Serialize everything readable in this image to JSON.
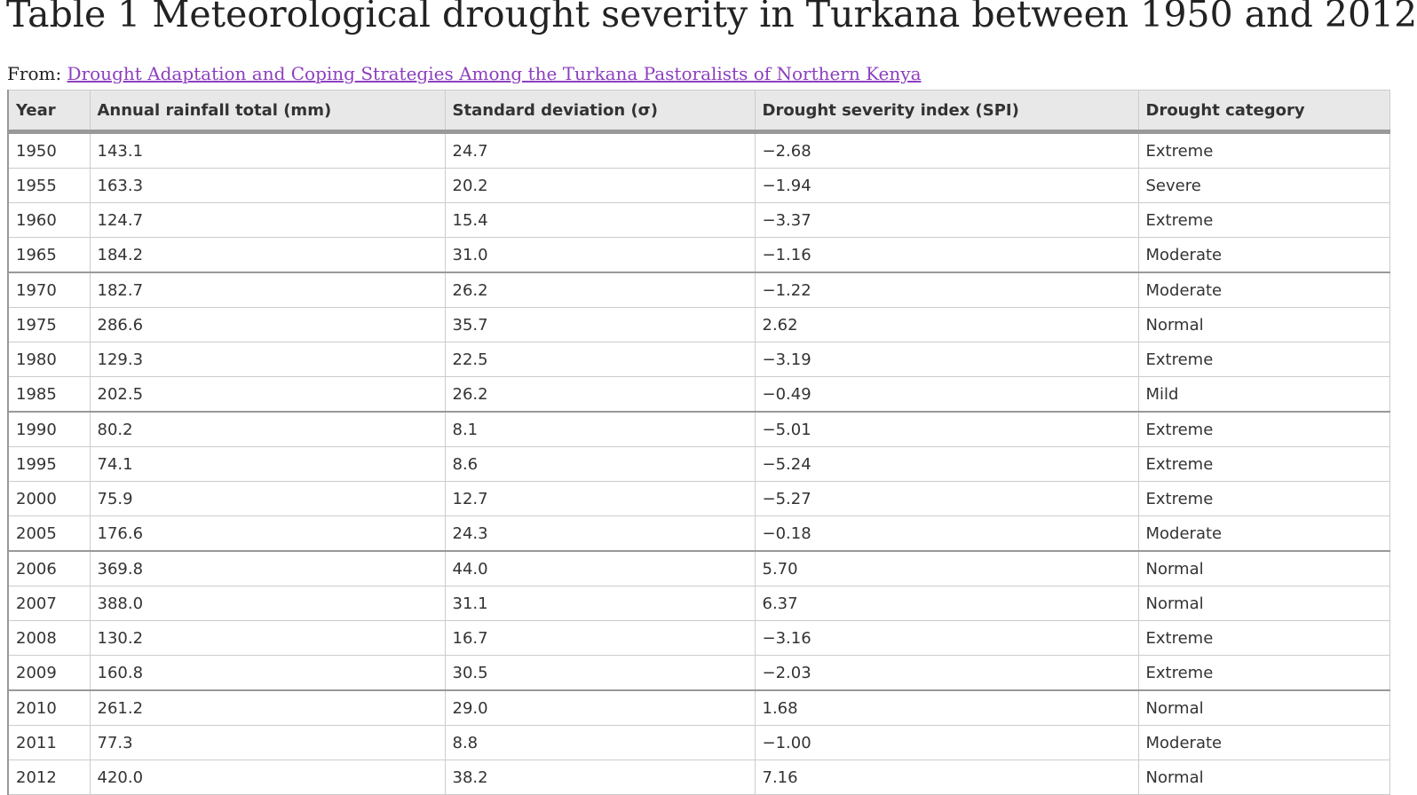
{
  "title": "Table 1 Meteorological drought severity in Turkana between 1950 and 2012",
  "source": {
    "label": "From:",
    "link_text": "Drought Adaptation and Coping Strategies Among the Turkana Pastoralists of Northern Kenya"
  },
  "table": {
    "headers": [
      "Year",
      "Annual rainfall total (mm)",
      "Standard deviation (σ)",
      "Drought severity index (SPI)",
      "Drought category"
    ],
    "rows": [
      [
        "1950",
        "143.1",
        "24.7",
        "−2.68",
        "Extreme"
      ],
      [
        "1955",
        "163.3",
        "20.2",
        "−1.94",
        "Severe"
      ],
      [
        "1960",
        "124.7",
        "15.4",
        "−3.37",
        "Extreme"
      ],
      [
        "1965",
        "184.2",
        "31.0",
        "−1.16",
        "Moderate"
      ],
      [
        "1970",
        "182.7",
        "26.2",
        "−1.22",
        "Moderate"
      ],
      [
        "1975",
        "286.6",
        "35.7",
        "2.62",
        "Normal"
      ],
      [
        "1980",
        "129.3",
        "22.5",
        "−3.19",
        "Extreme"
      ],
      [
        "1985",
        "202.5",
        "26.2",
        "−0.49",
        "Mild"
      ],
      [
        "1990",
        "80.2",
        "8.1",
        "−5.01",
        "Extreme"
      ],
      [
        "1995",
        "74.1",
        "8.6",
        "−5.24",
        "Extreme"
      ],
      [
        "2000",
        "75.9",
        "12.7",
        "−5.27",
        "Extreme"
      ],
      [
        "2005",
        "176.6",
        "24.3",
        "−0.18",
        "Moderate"
      ],
      [
        "2006",
        "369.8",
        "44.0",
        "5.70",
        "Normal"
      ],
      [
        "2007",
        "388.0",
        "31.1",
        "6.37",
        "Normal"
      ],
      [
        "2008",
        "130.2",
        "16.7",
        "−3.16",
        "Extreme"
      ],
      [
        "2009",
        "160.8",
        "30.5",
        "−2.03",
        "Extreme"
      ],
      [
        "2010",
        "261.2",
        "29.0",
        "1.68",
        "Normal"
      ],
      [
        "2011",
        "77.3",
        "8.8",
        "−1.00",
        "Moderate"
      ],
      [
        "2012",
        "420.0",
        "38.2",
        "7.16",
        "Normal"
      ]
    ]
  },
  "colors": {
    "link": "#8d3fbf",
    "header_bg": "#e8e8e8",
    "text": "#333333"
  }
}
